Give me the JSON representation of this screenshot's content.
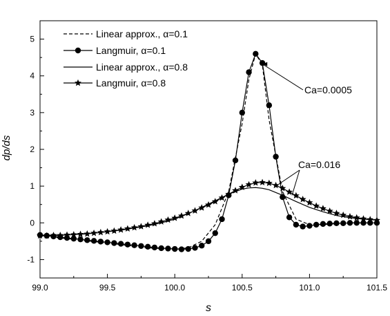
{
  "chart_data": {
    "type": "line",
    "title": "",
    "xlabel": "s",
    "ylabel": "dp/ds",
    "xlim": [
      99.0,
      101.5
    ],
    "ylim": [
      -1.5,
      5.5
    ],
    "xticks": [
      99.0,
      99.5,
      100.0,
      100.5,
      101.0,
      101.5
    ],
    "xtick_labels": [
      "99.0",
      "99.5",
      "100.0",
      "100.5",
      "101.0",
      "101.5"
    ],
    "yticks": [
      -1,
      0,
      1,
      2,
      3,
      4,
      5
    ],
    "ytick_labels": [
      "-1",
      "0",
      "1",
      "2",
      "3",
      "4",
      "5"
    ],
    "grid": false,
    "legend_position": "top-left",
    "series": [
      {
        "name": "Linear approx., α=0.1",
        "style": "dashed",
        "marker": "none",
        "x": [
          99.0,
          99.5,
          99.8,
          100.0,
          100.1,
          100.2,
          100.3,
          100.4,
          100.5,
          100.55,
          100.6,
          100.65,
          100.7,
          100.8,
          100.9,
          101.0,
          101.1,
          101.2,
          101.3,
          101.5
        ],
        "y": [
          -0.35,
          -0.55,
          -0.68,
          -0.72,
          -0.68,
          -0.5,
          -0.05,
          0.85,
          2.7,
          3.9,
          4.6,
          4.3,
          2.8,
          0.85,
          0.1,
          -0.05,
          -0.05,
          -0.02,
          0.0,
          0.0
        ]
      },
      {
        "name": "Langmuir, α=0.1",
        "style": "solid",
        "marker": "circle",
        "x": [
          99.0,
          99.05,
          99.1,
          99.15,
          99.2,
          99.25,
          99.3,
          99.35,
          99.4,
          99.45,
          99.5,
          99.55,
          99.6,
          99.65,
          99.7,
          99.75,
          99.8,
          99.85,
          99.9,
          99.95,
          100.0,
          100.05,
          100.1,
          100.15,
          100.2,
          100.25,
          100.3,
          100.35,
          100.4,
          100.45,
          100.5,
          100.55,
          100.6,
          100.65,
          100.7,
          100.75,
          100.8,
          100.85,
          100.9,
          100.95,
          101.0,
          101.05,
          101.1,
          101.15,
          101.2,
          101.25,
          101.3,
          101.35,
          101.4,
          101.45,
          101.5
        ],
        "y": [
          -0.33,
          -0.35,
          -0.37,
          -0.39,
          -0.41,
          -0.43,
          -0.45,
          -0.47,
          -0.49,
          -0.51,
          -0.53,
          -0.55,
          -0.57,
          -0.59,
          -0.61,
          -0.63,
          -0.65,
          -0.67,
          -0.69,
          -0.7,
          -0.71,
          -0.72,
          -0.71,
          -0.68,
          -0.62,
          -0.5,
          -0.28,
          0.1,
          0.75,
          1.7,
          3.0,
          4.1,
          4.6,
          4.35,
          3.2,
          1.8,
          0.7,
          0.15,
          -0.05,
          -0.1,
          -0.08,
          -0.05,
          -0.03,
          -0.02,
          -0.01,
          -0.01,
          0.0,
          0.0,
          0.0,
          0.0,
          0.0
        ]
      },
      {
        "name": "Linear approx., α=0.8",
        "style": "solid",
        "marker": "none",
        "x": [
          99.0,
          99.2,
          99.4,
          99.6,
          99.8,
          99.9,
          100.0,
          100.1,
          100.2,
          100.3,
          100.4,
          100.5,
          100.55,
          100.6,
          100.65,
          100.7,
          100.8,
          100.9,
          101.0,
          101.1,
          101.2,
          101.3,
          101.4,
          101.5
        ],
        "y": [
          -0.35,
          -0.33,
          -0.28,
          -0.2,
          -0.08,
          0.0,
          0.1,
          0.25,
          0.42,
          0.6,
          0.78,
          0.92,
          0.95,
          0.96,
          0.94,
          0.9,
          0.75,
          0.58,
          0.42,
          0.3,
          0.2,
          0.14,
          0.1,
          0.08
        ]
      },
      {
        "name": "Langmuir, α=0.8",
        "style": "solid",
        "marker": "star",
        "x": [
          99.0,
          99.05,
          99.1,
          99.15,
          99.2,
          99.25,
          99.3,
          99.35,
          99.4,
          99.45,
          99.5,
          99.55,
          99.6,
          99.65,
          99.7,
          99.75,
          99.8,
          99.85,
          99.9,
          99.95,
          100.0,
          100.05,
          100.1,
          100.15,
          100.2,
          100.25,
          100.3,
          100.35,
          100.4,
          100.45,
          100.5,
          100.55,
          100.6,
          100.65,
          100.7,
          100.75,
          100.8,
          100.85,
          100.9,
          100.95,
          101.0,
          101.05,
          101.1,
          101.15,
          101.2,
          101.25,
          101.3,
          101.35,
          101.4,
          101.45,
          101.5
        ],
        "y": [
          -0.35,
          -0.35,
          -0.34,
          -0.34,
          -0.33,
          -0.32,
          -0.31,
          -0.3,
          -0.28,
          -0.26,
          -0.24,
          -0.22,
          -0.19,
          -0.16,
          -0.13,
          -0.1,
          -0.06,
          -0.02,
          0.03,
          0.08,
          0.13,
          0.19,
          0.26,
          0.33,
          0.41,
          0.49,
          0.58,
          0.68,
          0.78,
          0.88,
          0.97,
          1.04,
          1.09,
          1.1,
          1.08,
          1.02,
          0.94,
          0.84,
          0.74,
          0.64,
          0.55,
          0.46,
          0.39,
          0.32,
          0.26,
          0.21,
          0.17,
          0.14,
          0.11,
          0.09,
          0.07
        ]
      }
    ],
    "annotations": [
      {
        "text": "Ca=0.0005",
        "arrow_to": [
          100.62,
          4.32
        ]
      },
      {
        "text": "Ca=0.016",
        "arrow_to": [
          100.75,
          1.05
        ]
      }
    ]
  }
}
